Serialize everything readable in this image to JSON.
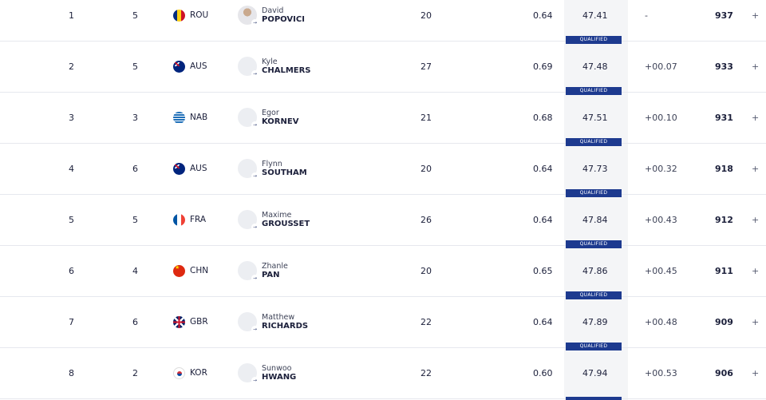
{
  "results": [
    {
      "rank": "1",
      "lane": "5",
      "country": "ROU",
      "flag": "rou",
      "first": "David",
      "last": "POPOVICI",
      "age": "20",
      "rt": "0.64",
      "time": "47.41",
      "diff": "-",
      "points": "937",
      "photo": true,
      "qualified": ""
    },
    {
      "rank": "2",
      "lane": "5",
      "country": "AUS",
      "flag": "aus",
      "first": "Kyle",
      "last": "CHALMERS",
      "age": "27",
      "rt": "0.69",
      "time": "47.48",
      "diff": "+00.07",
      "points": "933",
      "photo": false,
      "qualified": "QUALIFIED"
    },
    {
      "rank": "3",
      "lane": "3",
      "country": "NAB",
      "flag": "nab",
      "first": "Egor",
      "last": "KORNEV",
      "age": "21",
      "rt": "0.68",
      "time": "47.51",
      "diff": "+00.10",
      "points": "931",
      "photo": false,
      "qualified": "QUALIFIED"
    },
    {
      "rank": "4",
      "lane": "6",
      "country": "AUS",
      "flag": "aus",
      "first": "Flynn",
      "last": "SOUTHAM",
      "age": "20",
      "rt": "0.64",
      "time": "47.73",
      "diff": "+00.32",
      "points": "918",
      "photo": false,
      "qualified": "QUALIFIED"
    },
    {
      "rank": "5",
      "lane": "5",
      "country": "FRA",
      "flag": "fra",
      "first": "Maxime",
      "last": "GROUSSET",
      "age": "26",
      "rt": "0.64",
      "time": "47.84",
      "diff": "+00.43",
      "points": "912",
      "photo": false,
      "qualified": "QUALIFIED"
    },
    {
      "rank": "6",
      "lane": "4",
      "country": "CHN",
      "flag": "chn",
      "first": "Zhanle",
      "last": "PAN",
      "age": "20",
      "rt": "0.65",
      "time": "47.86",
      "diff": "+00.45",
      "points": "911",
      "photo": false,
      "qualified": "QUALIFIED"
    },
    {
      "rank": "7",
      "lane": "6",
      "country": "GBR",
      "flag": "gbr",
      "first": "Matthew",
      "last": "RICHARDS",
      "age": "22",
      "rt": "0.64",
      "time": "47.89",
      "diff": "+00.48",
      "points": "909",
      "photo": false,
      "qualified": "QUALIFIED"
    },
    {
      "rank": "8",
      "lane": "2",
      "country": "KOR",
      "flag": "kor",
      "first": "Sunwoo",
      "last": "HWANG",
      "age": "22",
      "rt": "0.60",
      "time": "47.94",
      "diff": "+00.53",
      "points": "906",
      "photo": false,
      "qualified": "QUALIFIED"
    }
  ],
  "icons": {
    "expand": "plus-icon",
    "profile_link": "arrow-icon"
  },
  "expand_symbol": "+",
  "arrow_symbol": "→"
}
